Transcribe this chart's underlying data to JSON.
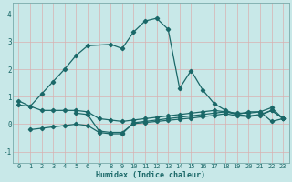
{
  "xlabel": "Humidex (Indice chaleur)",
  "xlim": [
    -0.5,
    23.5
  ],
  "ylim": [
    -1.4,
    4.4
  ],
  "yticks": [
    -1,
    0,
    1,
    2,
    3,
    4
  ],
  "xticks": [
    0,
    1,
    2,
    3,
    4,
    5,
    6,
    7,
    8,
    9,
    10,
    11,
    12,
    13,
    14,
    15,
    16,
    17,
    18,
    19,
    20,
    21,
    22,
    23
  ],
  "bg_color": "#c8e8e8",
  "grid_color": "#b0d8d8",
  "line_color": "#1a6868",
  "lines": [
    {
      "x": [
        0,
        1,
        2,
        3,
        4,
        5,
        6,
        8,
        9,
        10,
        11,
        12,
        13,
        14,
        15,
        16,
        17,
        18,
        19,
        20,
        21,
        22,
        23
      ],
      "y": [
        0.85,
        0.65,
        1.1,
        1.55,
        2.0,
        2.5,
        2.85,
        2.9,
        2.75,
        3.35,
        3.75,
        3.85,
        3.45,
        1.3,
        1.95,
        1.25,
        0.75,
        0.5,
        0.35,
        0.45,
        0.45,
        0.1,
        0.2
      ]
    },
    {
      "x": [
        0,
        1,
        2,
        3,
        4,
        5,
        6,
        7,
        8,
        9,
        10,
        11,
        12,
        13,
        14,
        15,
        16,
        17,
        18,
        19,
        20,
        21,
        22,
        23
      ],
      "y": [
        0.7,
        0.65,
        0.5,
        0.5,
        0.5,
        0.5,
        0.45,
        0.2,
        0.15,
        0.1,
        0.15,
        0.2,
        0.25,
        0.3,
        0.35,
        0.4,
        0.45,
        0.5,
        0.45,
        0.4,
        0.4,
        0.45,
        0.6,
        0.2
      ]
    },
    {
      "x": [
        1,
        2,
        3,
        4,
        5,
        6,
        7,
        8,
        9,
        10,
        11,
        12,
        13,
        14,
        15,
        16,
        17,
        18,
        19,
        20,
        21,
        22,
        23
      ],
      "y": [
        -0.2,
        -0.15,
        -0.1,
        -0.05,
        0.0,
        -0.05,
        -0.3,
        -0.35,
        -0.35,
        0.05,
        0.1,
        0.15,
        0.2,
        0.25,
        0.3,
        0.35,
        0.4,
        0.45,
        0.35,
        0.3,
        0.35,
        0.5,
        0.2
      ]
    },
    {
      "x": [
        5,
        6,
        7,
        8,
        9,
        10,
        11,
        12,
        13,
        14,
        15,
        16,
        17,
        18,
        19,
        20,
        21,
        22,
        23
      ],
      "y": [
        0.4,
        0.35,
        -0.25,
        -0.3,
        -0.3,
        0.02,
        0.06,
        0.1,
        0.14,
        0.18,
        0.22,
        0.27,
        0.32,
        0.38,
        0.3,
        0.28,
        0.32,
        0.5,
        0.2
      ]
    }
  ]
}
